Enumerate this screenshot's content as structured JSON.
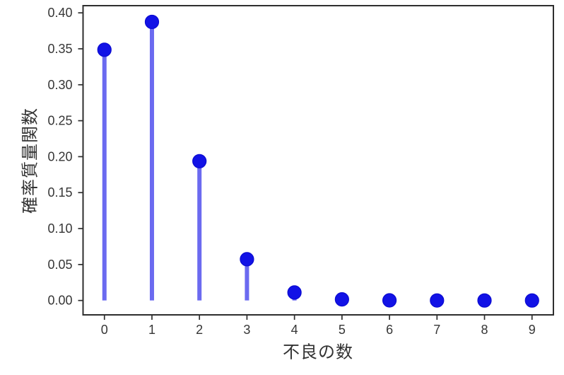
{
  "chart_data": {
    "type": "stem",
    "title": "",
    "xlabel": "不良の数",
    "ylabel": "確率質量関数",
    "x": [
      0,
      1,
      2,
      3,
      4,
      5,
      6,
      7,
      8,
      9
    ],
    "y": [
      0.34868,
      0.38742,
      0.19371,
      0.0574,
      0.01116,
      0.00149,
      0.00014,
      1e-05,
      0.0,
      0.0
    ],
    "xticks": [
      0,
      1,
      2,
      3,
      4,
      5,
      6,
      7,
      8,
      9
    ],
    "xtick_labels": [
      "0",
      "1",
      "2",
      "3",
      "4",
      "5",
      "6",
      "7",
      "8",
      "9"
    ],
    "yticks": [
      0.0,
      0.05,
      0.1,
      0.15,
      0.2,
      0.25,
      0.3,
      0.35,
      0.4
    ],
    "ytick_labels": [
      "0.00",
      "0.05",
      "0.10",
      "0.15",
      "0.20",
      "0.25",
      "0.30",
      "0.35",
      "0.40"
    ],
    "xlim": [
      -0.45,
      9.45
    ],
    "ylim": [
      -0.02,
      0.41
    ],
    "grid": false,
    "legend": null,
    "colors": {
      "stem": "#6b6af0",
      "marker": "#1212e6",
      "marker_edge": "#0b0bd0",
      "axis": "#2e2e2e",
      "text": "#363636",
      "background": "#ffffff"
    }
  }
}
